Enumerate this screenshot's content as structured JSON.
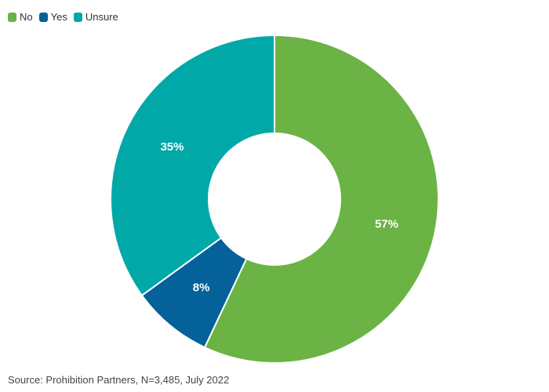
{
  "chart_data": {
    "type": "pie",
    "donut": true,
    "legend_position": "top-left",
    "categories": [
      "No",
      "Yes",
      "Unsure"
    ],
    "values": [
      57,
      8,
      35
    ],
    "value_labels": [
      "57%",
      "8%",
      "35%"
    ],
    "colors": [
      "#6ab344",
      "#046199",
      "#00a8a8"
    ]
  },
  "legend": {
    "items": [
      {
        "label": "No",
        "color": "#6ab344"
      },
      {
        "label": "Yes",
        "color": "#046199"
      },
      {
        "label": "Unsure",
        "color": "#00a8a8"
      }
    ]
  },
  "source": "Source: Prohibition Partners, N=3,485, July 2022"
}
